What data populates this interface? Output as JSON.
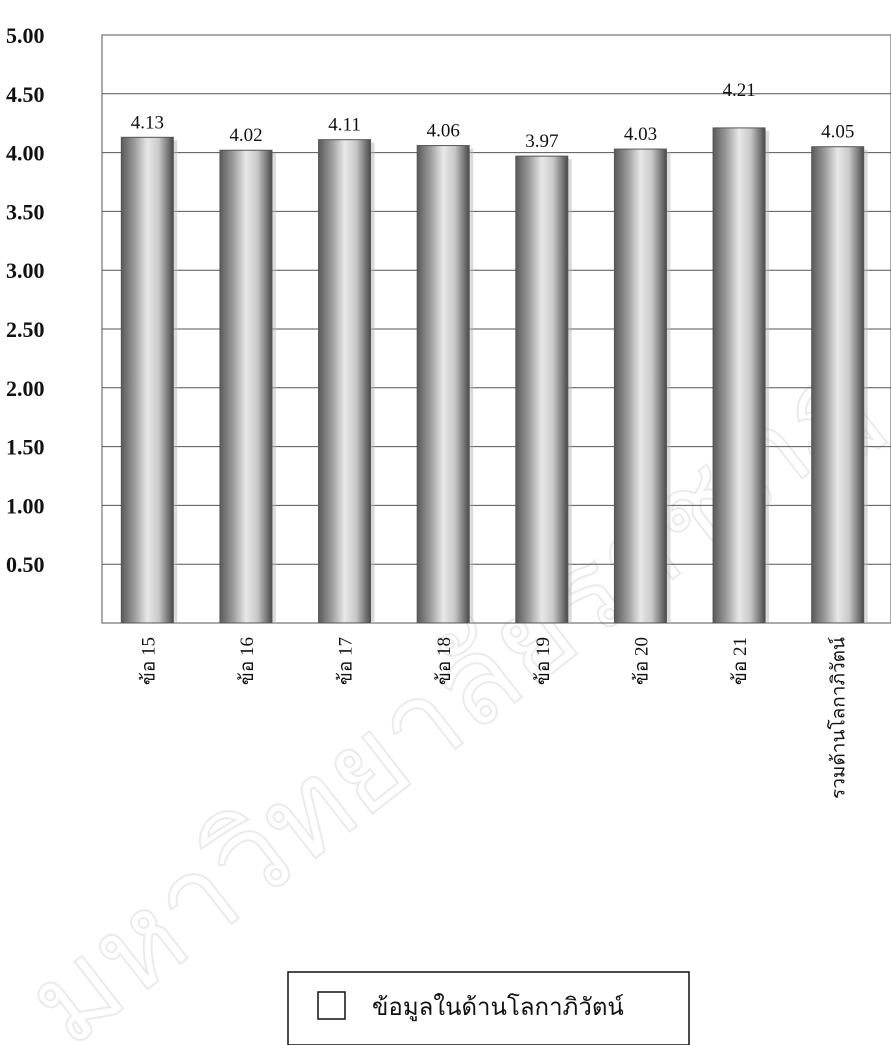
{
  "chart_data": {
    "type": "bar",
    "categories": [
      "ข้อ 15",
      "ข้อ 16",
      "ข้อ 17",
      "ข้อ 18",
      "ข้อ 19",
      "ข้อ 20",
      "ข้อ 21",
      "รวมด้านโลกาภิวัตน์"
    ],
    "series": [
      {
        "name": "ข้อมูลในด้านโลกาภิวัตน์",
        "values": [
          4.13,
          4.02,
          4.11,
          4.06,
          3.97,
          4.03,
          4.21,
          4.05
        ]
      }
    ],
    "data_labels": [
      "4.13",
      "4.02",
      "4.11",
      "4.06",
      "3.97",
      "4.03",
      "4.21",
      "4.05"
    ],
    "y_ticks": [
      "0.50",
      "1.00",
      "1.50",
      "2.00",
      "2.50",
      "3.00",
      "3.50",
      "4.00",
      "4.50",
      "5.00"
    ],
    "ylim": [
      0,
      5
    ],
    "grid": true,
    "legend_position": "bottom-center",
    "title": "",
    "xlabel": "",
    "ylabel": "",
    "bar_colors": [
      "#5a5a5a",
      "#c8c8c8",
      "#e8e8e8",
      "#9a9a9a",
      "#4a4a4a"
    ]
  },
  "watermark": {
    "text": "มหาวิทยาลัยราชภัฏ"
  }
}
